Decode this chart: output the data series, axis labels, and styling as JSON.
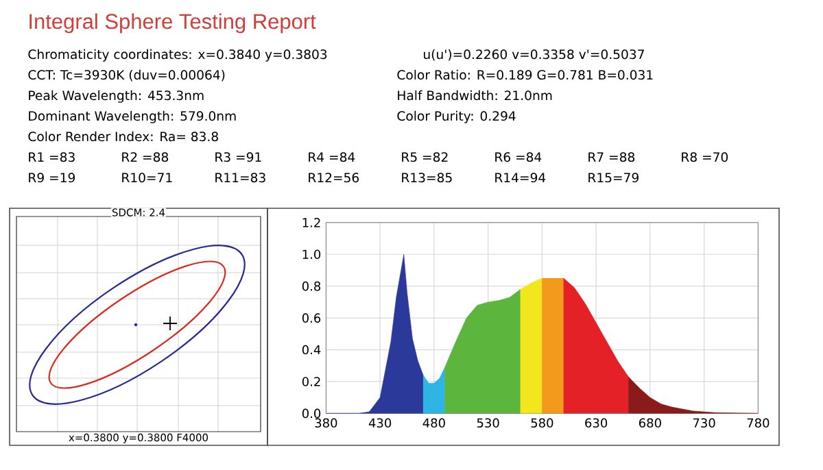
{
  "chart_data": [
    {
      "type": "other",
      "title": "Integral Sphere Testing Report",
      "annotations": [
        "Chromaticity coordinates: x=0.3840 y=0.3803",
        "u(u')=0.2260 v=0.3358 v'=0.5037",
        "CCT: Tc=3930K (duv=0.00064)",
        "Color Ratio: R=0.189  G=0.781  B=0.031",
        "Peak Wavelength: 453.3nm",
        "Half Bandwidth: 21.0nm",
        "Dominant Wavelength: 579.0nm",
        "Color Purity: 0.294",
        "Color Render Index: Ra= 83.8",
        "R1 =83",
        "R2 =88",
        "R3 =91",
        "R4 =84",
        "R5 =82",
        "R6 =84",
        "R7 =88",
        "R8 =70",
        "R9 =19",
        "R10=71",
        "R11=83",
        "R12=56",
        "R13=85",
        "R14=94",
        "R15=79"
      ]
    },
    {
      "type": "other",
      "annotations": [
        "SDCM:  2.4",
        "x=0.3800 y=0.3800 F4000"
      ]
    },
    {
      "type": "area",
      "grid": true,
      "xlim": [
        380,
        780
      ],
      "ylim": [
        0,
        1.2
      ],
      "xticks": [
        380,
        430,
        480,
        530,
        580,
        630,
        680,
        730,
        780
      ],
      "yticks": [
        {
          "value": 0,
          "label": "0.0"
        },
        0.2,
        0.4,
        0.6,
        0.8,
        {
          "value": 1,
          "label": "1.0"
        },
        1.2
      ],
      "series": [
        {
          "color": "#2b3a9a",
          "x": [
            380,
            410,
            420,
            430,
            440,
            445,
            452,
            455,
            460,
            465,
            470
          ],
          "values": [
            0,
            0,
            0.01,
            0.1,
            0.45,
            0.73,
            1.0,
            0.76,
            0.47,
            0.33,
            0.24
          ]
        },
        {
          "color": "#2fb4e6",
          "x": [
            470,
            475,
            480,
            485,
            490
          ],
          "values": [
            0.24,
            0.19,
            0.19,
            0.22,
            0.29
          ]
        },
        {
          "color": "#5cb53c",
          "x": [
            490,
            500,
            510,
            520,
            530,
            540,
            550,
            560
          ],
          "values": [
            0.29,
            0.45,
            0.6,
            0.68,
            0.7,
            0.71,
            0.73,
            0.78
          ]
        },
        {
          "color": "#f2e61c",
          "x": [
            560,
            570,
            580
          ],
          "values": [
            0.78,
            0.82,
            0.85
          ]
        },
        {
          "color": "#f39a1d",
          "x": [
            580,
            590,
            600
          ],
          "values": [
            0.85,
            0.85,
            0.85
          ]
        },
        {
          "color": "#e32127",
          "x": [
            600,
            610,
            620,
            630,
            640,
            650,
            660
          ],
          "values": [
            0.85,
            0.79,
            0.69,
            0.57,
            0.45,
            0.33,
            0.23
          ]
        },
        {
          "color": "#8b1a1a",
          "x": [
            660,
            670,
            680,
            690,
            700,
            720,
            740,
            780
          ],
          "values": [
            0.23,
            0.16,
            0.1,
            0.06,
            0.04,
            0.015,
            0.005,
            0
          ]
        }
      ]
    }
  ]
}
